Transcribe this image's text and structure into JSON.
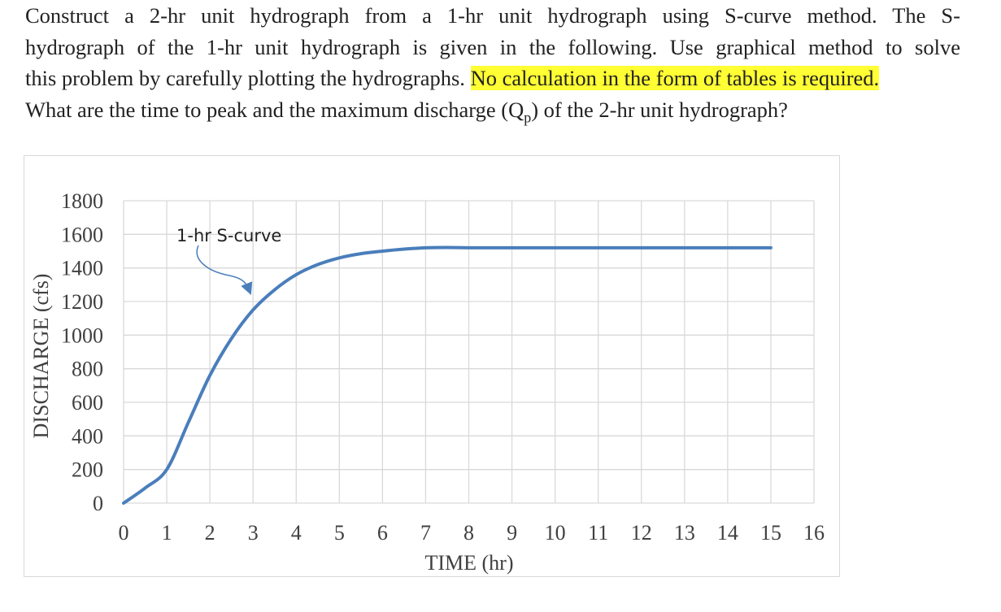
{
  "problem": {
    "line1": "Construct a 2-hr unit hydrograph from a 1-hr unit hydrograph using S-curve method. The S-",
    "line2": "hydrograph of the 1-hr unit hydrograph is given in the following. Use graphical method to solve",
    "line3_a": "this problem by carefully plotting the hydrographs. ",
    "line3_highlight": "No calculation in the form of tables is required.",
    "line4_a": "What are the time to peak and the maximum discharge (Q",
    "line4_sub": "p",
    "line4_b": ") of the 2-hr unit hydrograph?",
    "highlight_color": "#ffff33"
  },
  "chart_data": {
    "type": "line",
    "xlabel": "TIME (hr)",
    "ylabel": "DISCHARGE (cfs)",
    "xlim": [
      0,
      16
    ],
    "ylim": [
      0,
      1800
    ],
    "xticks": [
      "0",
      "1",
      "2",
      "3",
      "4",
      "5",
      "6",
      "7",
      "8",
      "9",
      "10",
      "11",
      "12",
      "13",
      "14",
      "15",
      "16"
    ],
    "yticks": [
      "0",
      "200",
      "400",
      "600",
      "800",
      "1000",
      "1200",
      "1400",
      "1600",
      "1800"
    ],
    "grid": true,
    "line_color": "#4a7ebb",
    "annotation": "1-hr S-curve",
    "series": [
      {
        "x": [
          0,
          0.5,
          1,
          1.5,
          2,
          2.5,
          3,
          3.5,
          4,
          4.5,
          5,
          5.5,
          6,
          6.5,
          7,
          7.5,
          8,
          9,
          10,
          11,
          12,
          13,
          14,
          15
        ],
        "y": [
          0,
          90,
          200,
          480,
          760,
          980,
          1150,
          1270,
          1360,
          1420,
          1460,
          1485,
          1500,
          1512,
          1520,
          1522,
          1520,
          1520,
          1520,
          1520,
          1520,
          1520,
          1520,
          1520
        ]
      }
    ]
  }
}
